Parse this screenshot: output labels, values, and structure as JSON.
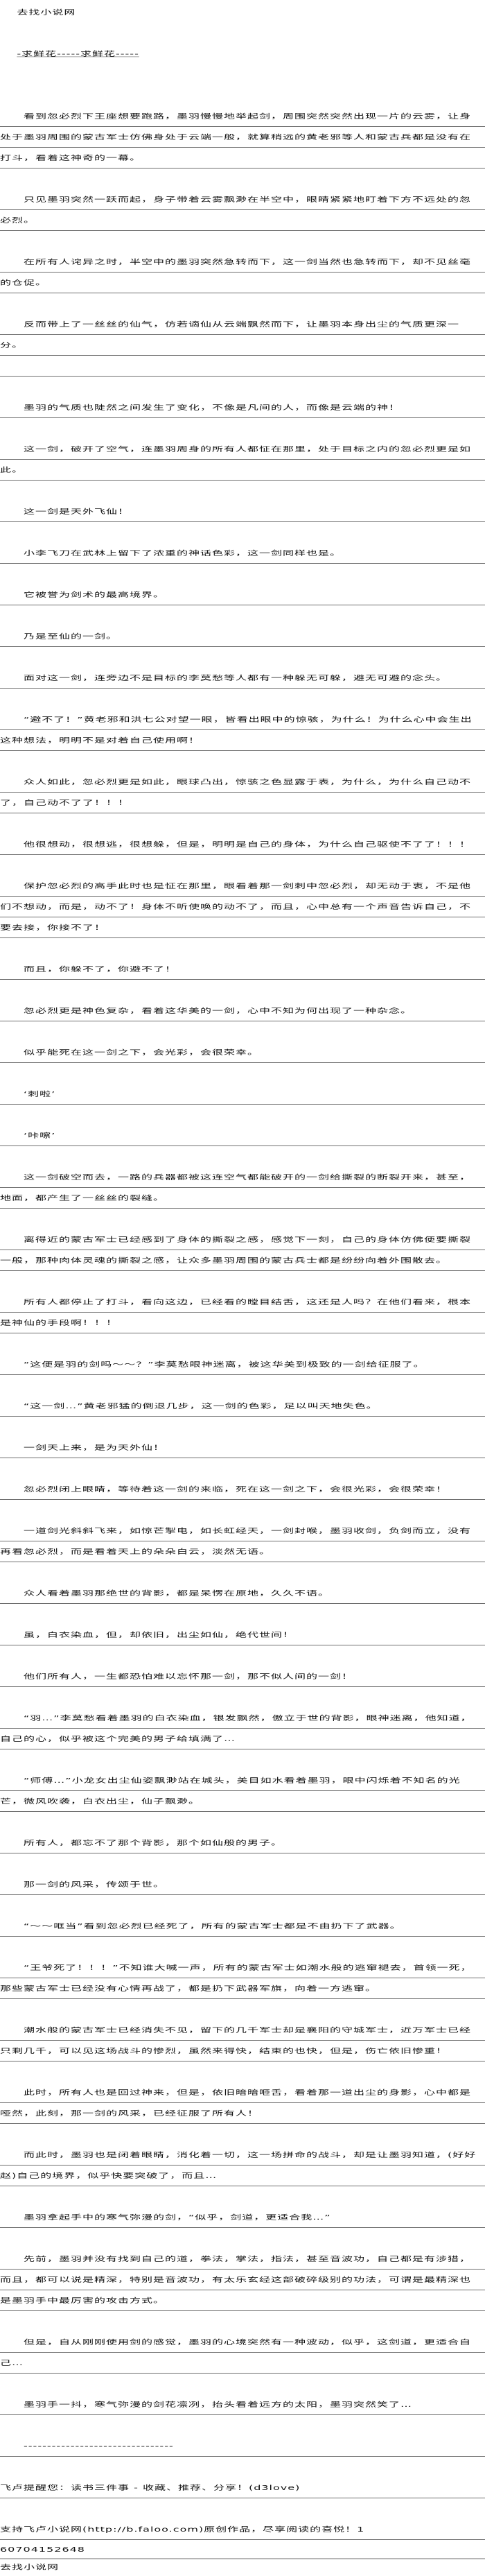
{
  "header": {
    "site_name": "去找小说网",
    "link_text": "-求鲜花-----求鲜花-----"
  },
  "content": {
    "paragraphs": [
      "　　看到忽必烈下王座想要跑路，墨羽慢慢地举起剑，周围突然突然出现一片的云雾，让身处于墨羽周围的蒙古军士仿佛身处于云端一般，就算稍远的黄老邪等人和蒙古兵都是没有在打斗，看着这神奇的一幕。",
      "　　只见墨羽突然一跃而起，身子带着云雾飘渺在半空中，眼睛紧紧地盯着下方不远处的忽必烈。",
      "　　在所有人诧异之时，半空中的墨羽突然急转而下，这一剑当然也急转而下，却不见丝毫的仓促。",
      "　　反而带上了一丝丝的仙气，仿若谪仙从云端飘然而下，让墨羽本身出尘的气质更深一分。",
      "　　墨羽的气质也陡然之间发生了变化，不像是凡间的人，而像是云端的神！",
      "　　这一剑，破开了空气，连墨羽周身的所有人都怔在那里，处于目标之内的忽必烈更是如此。",
      "　　这一剑是天外飞仙！",
      "　　小李飞刀在武林上留下了浓重的神话色彩，这一剑同样也是。",
      "　　它被誉为剑术的最高境界。",
      "　　乃是至仙的一剑。",
      "　　面对这一剑，连旁边不是目标的李莫愁等人都有一种躲无可躲，避无可避的念头。",
      "　　“避不了！”黄老邪和洪七公对望一眼，皆看出眼中的惊骇，为什么！为什么心中会生出这种想法，明明不是对着自己使用啊！",
      "　　众人如此，忽必烈更是如此，眼球凸出，惊骇之色显露于表，为什么，为什么自己动不了，自己动不了了！！！",
      "　　他很想动，很想逃，很想躲，但是，明明是自己的身体，为什么自己驱使不了了！！！",
      "　　保护忽必烈的高手此时也是怔在那里，眼看着那一剑刺中忽必烈，却无动于衷，不是他们不想动，而是，动不了！身体不听使唤的动不了，而且，心中总有一个声音告诉自己，不要去接，你接不了！",
      "　　而且，你躲不了，你避不了！",
      "　　忽必烈更是神色复杂，看着这华美的一剑，心中不知为何出现了一种杂念。",
      "　　似乎能死在这一剑之下，会光彩，会很荣幸。",
      "　　‘刺啦’",
      "　　‘咔嚓’",
      "　　这一剑破空而去，一路的兵器都被这连空气都能破开的一剑给撕裂的断裂开来，甚至，地面，都产生了一丝丝的裂缝。",
      "　　离得近的蒙古军士已经感到了身体的撕裂之感，感觉下一刻，自己的身体仿佛便要撕裂一般，那种肉体灵魂的撕裂之感，让众多墨羽周围的蒙古兵士都是纷纷向着外围散去。",
      "　　所有人都停止了打斗，看向这边，已经看的瞠目结舌，这还是人吗？在他们看来，根本是神仙的手段啊！！！",
      "　　“这便是羽的剑吗～～？”李莫愁眼神迷离，被这华美到极致的一剑给征服了。",
      "　　“这一剑…”黄老邪猛的倒退几步，这一剑的色彩，足以叫天地失色。",
      "　　一剑天上来，是为天外仙！",
      "　　忽必烈闭上眼睛，等待着这一剑的来临，死在这一剑之下，会很光彩，会很荣幸！",
      "　　一道剑光斜斜飞来，如惊芒掣电，如长虹经天，一剑封喉，墨羽收剑，负剑而立，没有再看忽必烈，而是看着天上的朵朵白云，淡然无语。",
      "　　众人看着墨羽那绝世的背影，都是呆愣在原地，久久不语。",
      "　　虽，白衣染血，但，却依旧，出尘如仙，绝代世间！",
      "　　他们所有人，一生都恐怕难以忘怀那一剑，那不似人间的一剑！",
      "　　“羽…”李莫愁看着墨羽的白衣染血，银发飘然，傲立于世的背影，眼神迷离，他知道，自己的心，似乎被这个完美的男子给填满了…",
      "　　“师傅…”小龙女出尘仙姿飘渺站在城头，美目如水看着墨羽，眼中闪烁着不知名的光芒，微风吹袭，白衣出尘，仙子飘渺。",
      "　　所有人，都忘不了那个背影，那个如仙般的男子。",
      "　　那一剑的风采，传颂于世。",
      "　　“～～哐当”看到忽必烈已经死了，所有的蒙古军士都是不由扔下了武器。",
      "　　“王爷死了！！！”不知谁大喊一声，所有的蒙古军士如潮水般的逃窜褪去，首领一死，那些蒙古军士已经没有心情再战了，都是扔下武器军旗，向着一方逃窜。",
      "　　潮水般的蒙古军士已经消失不见，留下的几千军士却是襄阳的守城军士，近万军士已经只剩几千，可以见这场战斗的惨烈，虽然来得快，结束的也快，但是，伤亡依旧惨重！",
      "　　此时，所有人也是回过神来，但是，依旧暗暗咂舌，看着那一道出尘的身影，心中都是哑然，此刻，那一剑的风采，已经征服了所有人！",
      "　　而此时，墨羽也是闭着眼睛，消化着一切，这一场拼命的战斗，却是让墨羽知道，(好好赵)自己的境界，似乎快要突破了，而且…",
      "　　墨羽拿起手中的寒气弥漫的剑，“似乎，剑道，更适合我…”",
      "　　先前，墨羽并没有找到自己的道，拳法，掌法，指法，甚至音波功，自己都是有涉猎，而且，都可以说是精深，特别是音波功，有太乐玄经这部破碎级别的功法，可谓是最精深也是墨羽手中最厉害的攻击方式。",
      "　　但是，自从刚刚使用剑的感觉，墨羽的心境突然有一种波动，似乎，这剑道，更适合自己…",
      "　　墨羽手一抖，寒气弥漫的剑花凛冽，抬头看着远方的太阳，墨羽突然笑了…",
      "　　--------------------------------"
    ]
  },
  "footer": {
    "reminder": "飞卢提醒您：读书三件事 - 收藏、推荐、分享！(d3love)",
    "support_line": "支持飞卢小说网(http://b.faloo.com)原创作品，尽享阅读的喜悦！1",
    "support_number": "60704152648",
    "site_name": "去找小说网"
  },
  "colors": {
    "text": "#111111",
    "rule_line": "#6e6e6e",
    "background": "#ffffff"
  }
}
